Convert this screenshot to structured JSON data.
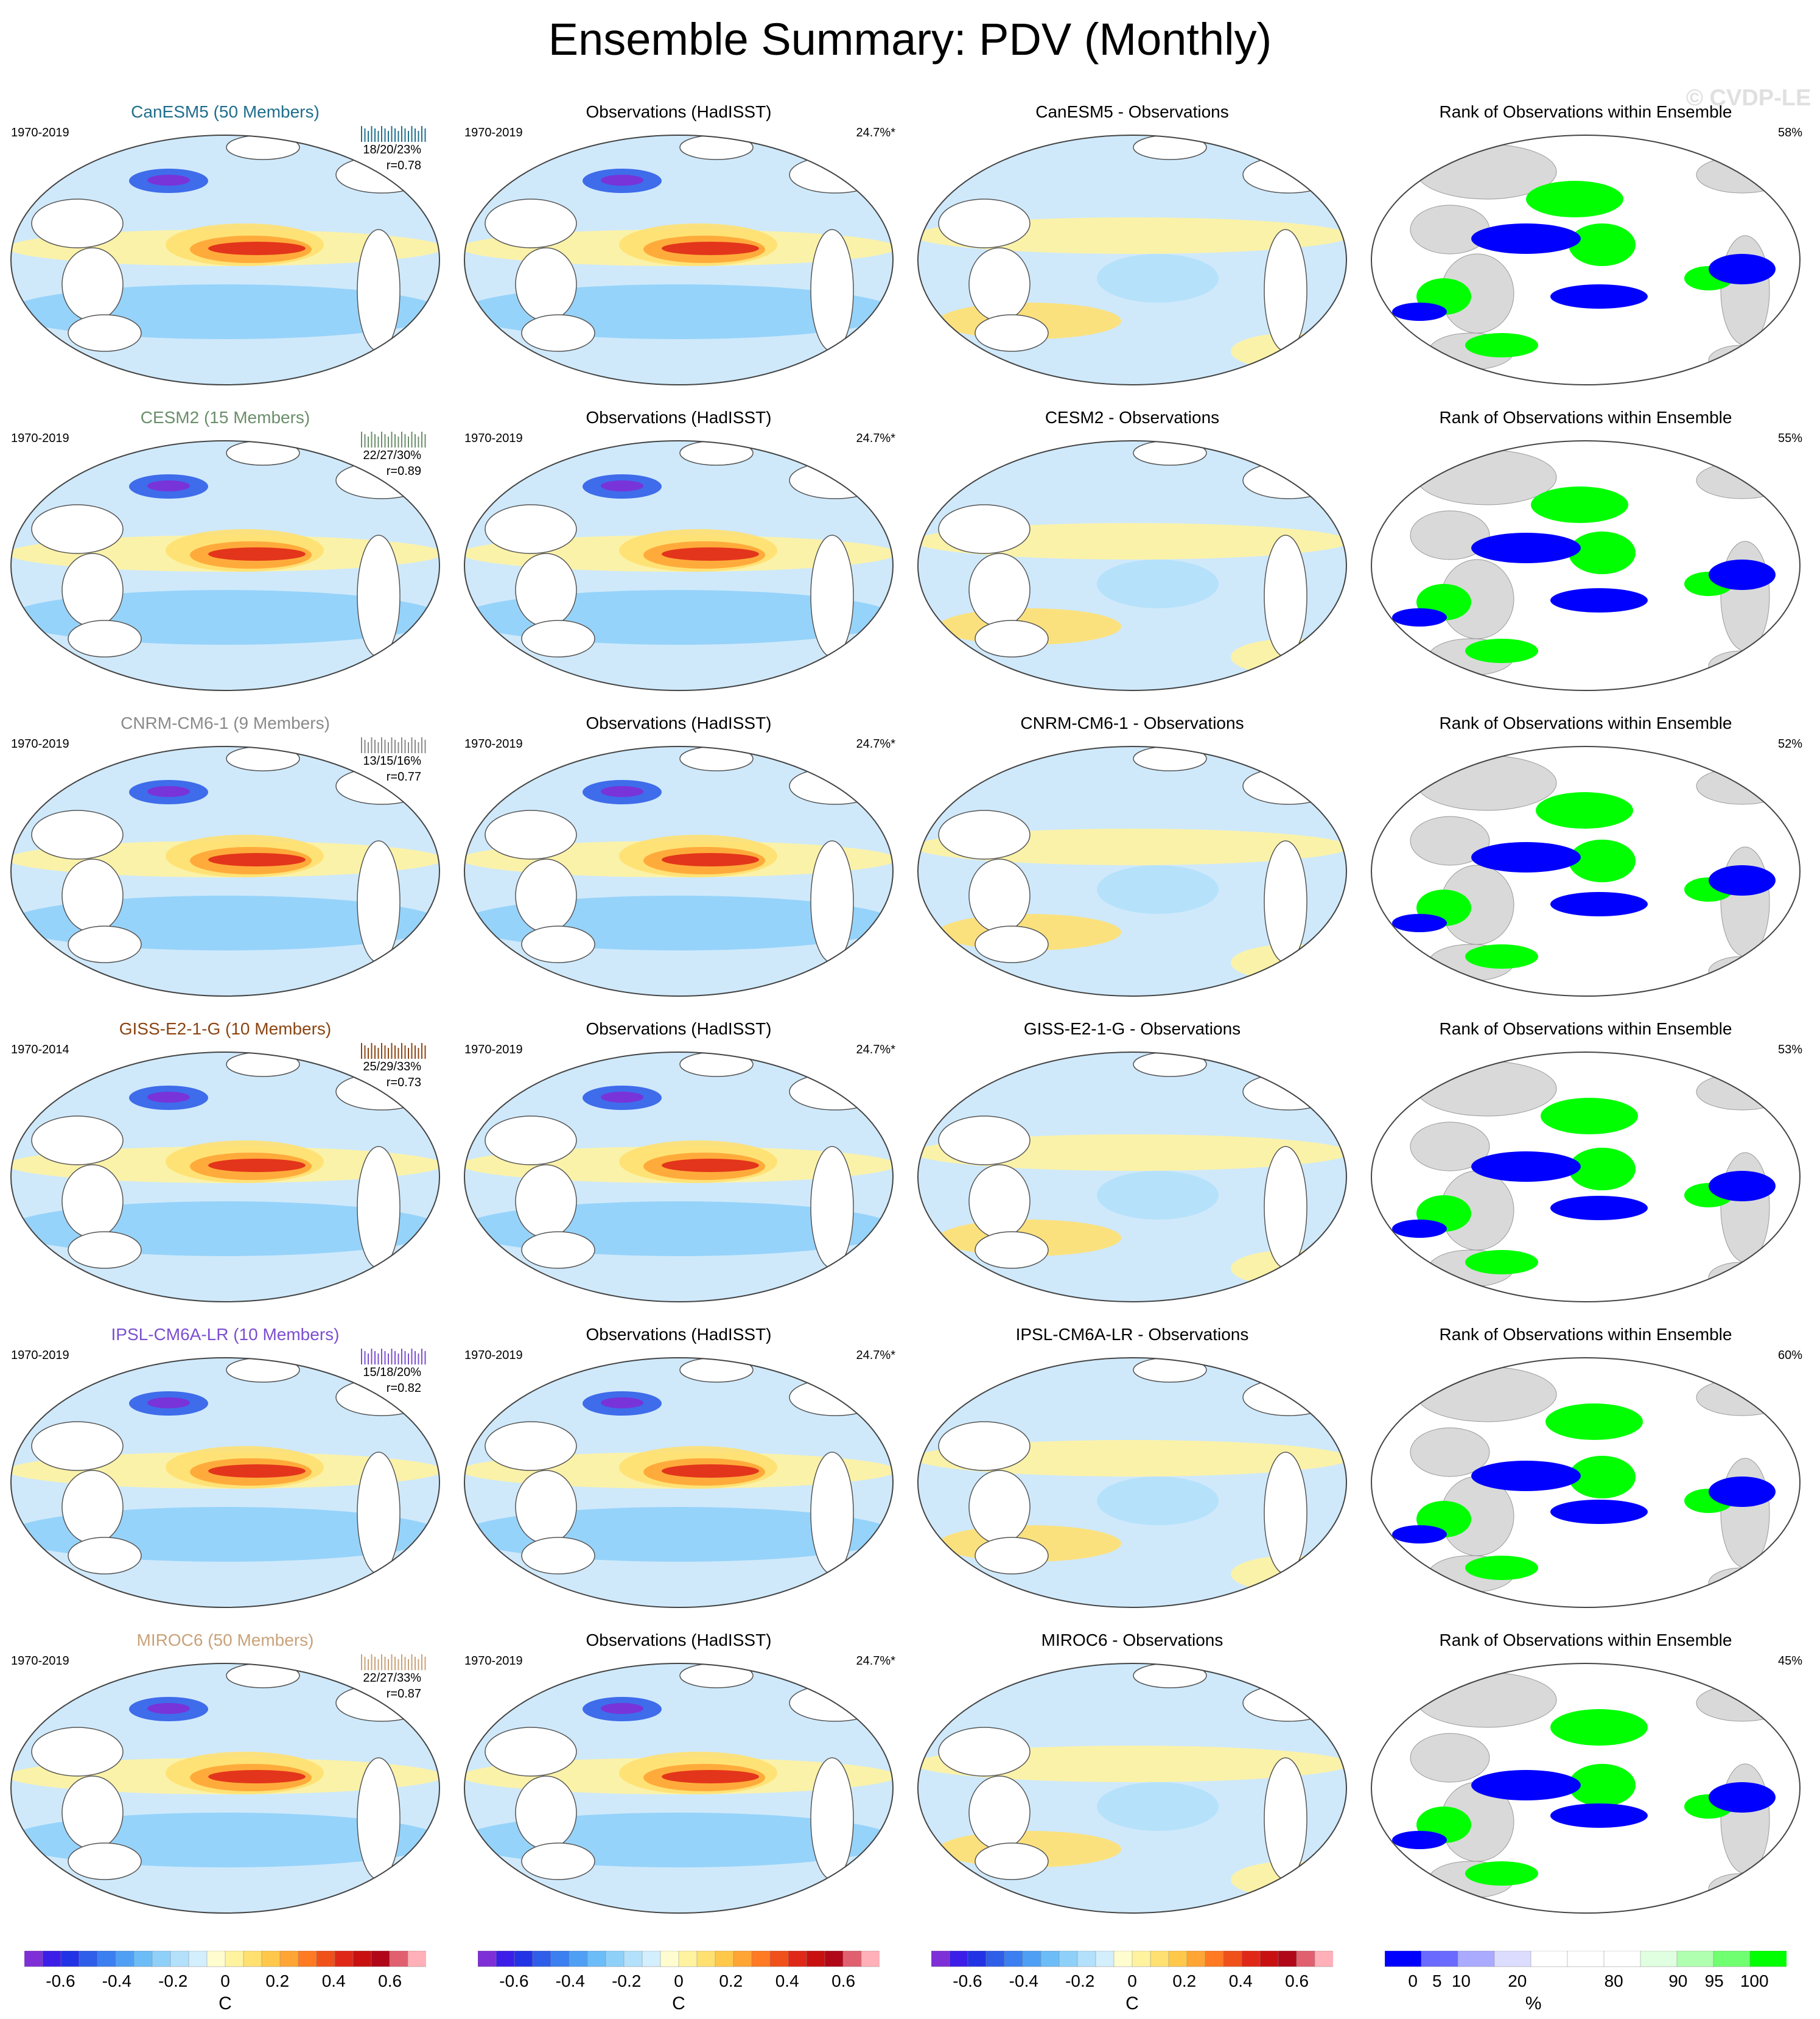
{
  "title": "Ensemble Summary: PDV (Monthly)",
  "watermark": "© CVDP-LE",
  "rows": [
    {
      "model_title": "CanESM5 (50 Members)",
      "model_color": "#1f6e8c",
      "model_period": "1970-2019",
      "stats1": "18/20/23%",
      "stats2": "r=0.78",
      "obs_title": "Observations (HadISST)",
      "obs_period": "1970-2019",
      "obs_pct": "24.7%*",
      "diff_title": "CanESM5 - Observations",
      "rank_title": "Rank of Observations within Ensemble",
      "rank_pct": "58%"
    },
    {
      "model_title": "CESM2 (15 Members)",
      "model_color": "#6b8e6b",
      "model_period": "1970-2019",
      "stats1": "22/27/30%",
      "stats2": "r=0.89",
      "obs_title": "Observations (HadISST)",
      "obs_period": "1970-2019",
      "obs_pct": "24.7%*",
      "diff_title": "CESM2 - Observations",
      "rank_title": "Rank of Observations within Ensemble",
      "rank_pct": "55%"
    },
    {
      "model_title": "CNRM-CM6-1 (9 Members)",
      "model_color": "#8a8a8a",
      "model_period": "1970-2019",
      "stats1": "13/15/16%",
      "stats2": "r=0.77",
      "obs_title": "Observations (HadISST)",
      "obs_period": "1970-2019",
      "obs_pct": "24.7%*",
      "diff_title": "CNRM-CM6-1 - Observations",
      "rank_title": "Rank of Observations within Ensemble",
      "rank_pct": "52%"
    },
    {
      "model_title": "GISS-E2-1-G (10 Members)",
      "model_color": "#8b4513",
      "model_period": "1970-2014",
      "stats1": "25/29/33%",
      "stats2": "r=0.73",
      "obs_title": "Observations (HadISST)",
      "obs_period": "1970-2019",
      "obs_pct": "24.7%*",
      "diff_title": "GISS-E2-1-G - Observations",
      "rank_title": "Rank of Observations within Ensemble",
      "rank_pct": "53%"
    },
    {
      "model_title": "IPSL-CM6A-LR (10 Members)",
      "model_color": "#7b4fd0",
      "model_period": "1970-2019",
      "stats1": "15/18/20%",
      "stats2": "r=0.82",
      "obs_title": "Observations (HadISST)",
      "obs_period": "1970-2019",
      "obs_pct": "24.7%*",
      "diff_title": "IPSL-CM6A-LR - Observations",
      "rank_title": "Rank of Observations within Ensemble",
      "rank_pct": "60%"
    },
    {
      "model_title": "MIROC6 (50 Members)",
      "model_color": "#c9a27a",
      "model_period": "1970-2019",
      "stats1": "22/27/33%",
      "stats2": "r=0.87",
      "obs_title": "Observations (HadISST)",
      "obs_period": "1970-2019",
      "obs_pct": "24.7%*",
      "diff_title": "MIROC6 - Observations",
      "rank_title": "Rank of Observations within Ensemble",
      "rank_pct": "45%"
    }
  ],
  "colorbar_temp": {
    "ticks": [
      "-0.6",
      "-0.4",
      "-0.2",
      "0",
      "0.2",
      "0.4",
      "0.6"
    ],
    "unit": "C",
    "colors": [
      "#7e2fd6",
      "#3c1ee8",
      "#2233e6",
      "#2f5ee8",
      "#3b7ff0",
      "#4fa0f5",
      "#6cbcf7",
      "#8fd0f9",
      "#b3e0fb",
      "#d3eefc",
      "#fffdd0",
      "#fff3a0",
      "#ffe070",
      "#ffc84a",
      "#ffa535",
      "#ff7a22",
      "#f0501a",
      "#e02818",
      "#c81010",
      "#b00818",
      "#e06070",
      "#ffb0b8"
    ]
  },
  "colorbar_rank": {
    "ticks": [
      "0",
      "5",
      "10",
      "20",
      "80",
      "90",
      "95",
      "100"
    ],
    "unit": "%",
    "colors": [
      "#0000ff",
      "#6a6aff",
      "#aaaaff",
      "#dcdcff",
      "#ffffff",
      "#ffffff",
      "#ffffff",
      "#e0ffe0",
      "#b0ffb0",
      "#70ff70",
      "#00ff00"
    ]
  }
}
